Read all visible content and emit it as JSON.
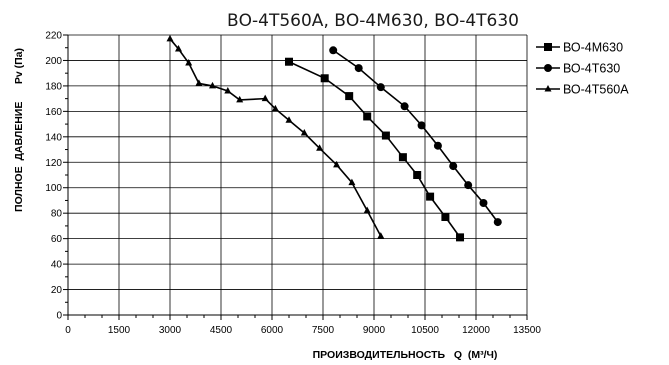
{
  "chart_data": {
    "type": "line",
    "title": "ВО-4Т560А, ВО-4М630, ВО-4Т630",
    "xlabel": "ПРОИЗВОДИТЕЛЬНОСТЬ   Q  (М³/Ч)",
    "ylabel": "ПОЛНОЕ  ДАВЛЕНИЕ      Pv (Па)",
    "xlim": [
      0,
      13500
    ],
    "ylim": [
      0,
      220
    ],
    "xticks": [
      0,
      1500,
      3000,
      4500,
      6000,
      7500,
      9000,
      10500,
      12000,
      13500
    ],
    "yticks": [
      0,
      20,
      40,
      60,
      80,
      100,
      120,
      140,
      160,
      180,
      200,
      220
    ],
    "grid": true,
    "legend_position": "right",
    "series": [
      {
        "name": "ВО-4М630",
        "marker": "square",
        "color": "#000000",
        "x": [
          6500,
          7550,
          8270,
          8800,
          9350,
          9850,
          10270,
          10650,
          11100,
          11530
        ],
        "y": [
          199,
          186,
          172,
          156,
          141,
          124,
          110,
          93,
          77,
          61
        ]
      },
      {
        "name": "ВО-4Т630",
        "marker": "circle",
        "color": "#000000",
        "x": [
          7800,
          8550,
          9200,
          9900,
          10400,
          10880,
          11330,
          11770,
          12220,
          12640
        ],
        "y": [
          208,
          194,
          179,
          164,
          149,
          133,
          117,
          102,
          88,
          73
        ]
      },
      {
        "name": "ВО-4Т560А",
        "marker": "triangle",
        "color": "#000000",
        "x": [
          3000,
          3250,
          3550,
          3850,
          4250,
          4700,
          5050,
          5800,
          6100,
          6500,
          6950,
          7400,
          7900,
          8350,
          8800,
          9200
        ],
        "y": [
          217,
          209,
          198,
          182,
          180,
          176,
          169,
          170,
          162,
          153,
          143,
          131,
          118,
          104,
          82,
          62
        ]
      }
    ]
  }
}
